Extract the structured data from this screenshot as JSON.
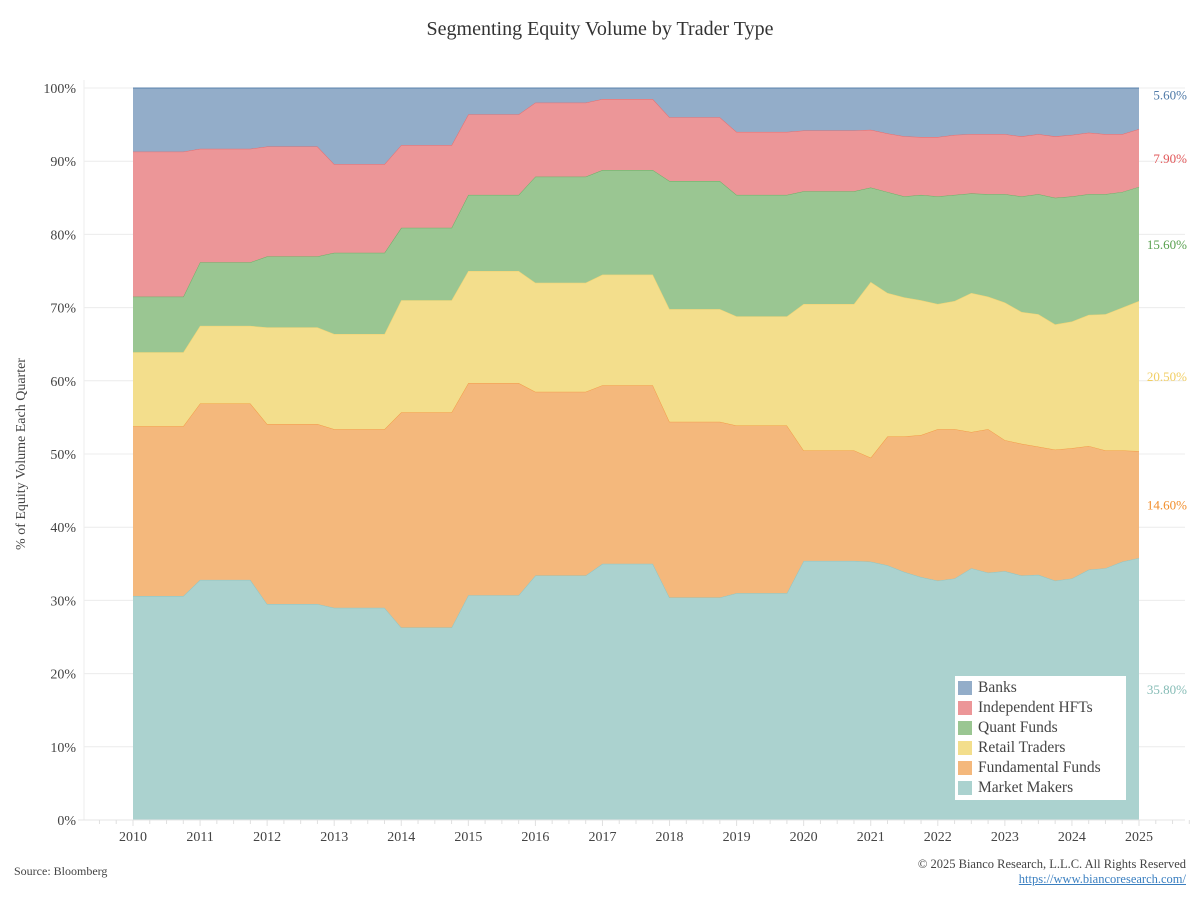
{
  "chart_data": {
    "type": "area",
    "stacked": true,
    "title": "Segmenting Equity Volume by Trader Type",
    "xlabel": "",
    "ylabel": "% of Equity Volume Each Quarter",
    "xlim": [
      2009.4,
      2025.7
    ],
    "ylim": [
      0,
      100
    ],
    "x_ticks": [
      "2010",
      "2011",
      "2012",
      "2013",
      "2014",
      "2015",
      "2016",
      "2017",
      "2018",
      "2019",
      "2020",
      "2021",
      "2022",
      "2023",
      "2024",
      "2025"
    ],
    "y_ticks": [
      "0%",
      "10%",
      "20%",
      "30%",
      "40%",
      "50%",
      "60%",
      "70%",
      "80%",
      "90%",
      "100%"
    ],
    "grid": true,
    "legend_position": "bottom-right",
    "x": [
      2010,
      2010.75,
      2011,
      2011.75,
      2012,
      2012.75,
      2013,
      2013.75,
      2014,
      2014.75,
      2015,
      2015.75,
      2016,
      2016.75,
      2017,
      2017.75,
      2018,
      2018.75,
      2019,
      2019.75,
      2020,
      2020.75,
      2021,
      2021.25,
      2021.5,
      2021.75,
      2022,
      2022.25,
      2022.5,
      2022.75,
      2023,
      2023.25,
      2023.5,
      2023.75,
      2024,
      2024.25,
      2024.5,
      2024.75,
      2025
    ],
    "series": [
      {
        "name": "Market Makers",
        "color": "#86bcb6",
        "fill": "#abd2cf",
        "end_label": "35.80%",
        "values": [
          30.6,
          30.6,
          32.8,
          32.8,
          29.5,
          29.5,
          29.0,
          29.0,
          26.3,
          26.3,
          30.7,
          30.7,
          33.4,
          33.4,
          35.0,
          35.0,
          30.4,
          30.4,
          31.0,
          31.0,
          35.4,
          35.4,
          35.3,
          34.8,
          33.9,
          33.2,
          32.7,
          33.0,
          34.4,
          33.8,
          34.0,
          33.4,
          33.5,
          32.7,
          33.0,
          34.2,
          34.4,
          35.3,
          35.8
        ]
      },
      {
        "name": "Fundamental Funds",
        "color": "#f28e2b",
        "fill": "#f4b87c",
        "end_label": "14.60%",
        "values": [
          23.2,
          23.2,
          24.1,
          24.1,
          24.6,
          24.6,
          24.4,
          24.4,
          29.4,
          29.4,
          29.0,
          29.0,
          25.1,
          25.1,
          24.4,
          24.4,
          24.0,
          24.0,
          22.9,
          22.9,
          15.1,
          15.1,
          14.2,
          17.6,
          18.5,
          19.4,
          20.7,
          20.4,
          18.6,
          19.6,
          17.9,
          18.0,
          17.5,
          17.9,
          17.8,
          16.9,
          16.1,
          15.2,
          14.6
        ]
      },
      {
        "name": "Retail Traders",
        "color": "#f1ce63",
        "fill": "#f3de8c",
        "end_label": "20.50%",
        "values": [
          10.1,
          10.1,
          10.6,
          10.6,
          13.2,
          13.2,
          13.0,
          13.0,
          15.3,
          15.3,
          15.3,
          15.3,
          14.9,
          14.9,
          15.1,
          15.1,
          15.4,
          15.4,
          14.9,
          14.9,
          20.0,
          20.0,
          24.0,
          19.6,
          19.0,
          18.4,
          17.1,
          17.5,
          19.0,
          18.1,
          18.8,
          18.0,
          18.1,
          17.1,
          17.3,
          17.9,
          18.6,
          19.5,
          20.5
        ]
      },
      {
        "name": "Quant Funds",
        "color": "#59a14f",
        "fill": "#9ac692",
        "end_label": "15.60%",
        "values": [
          7.6,
          7.6,
          8.7,
          8.7,
          9.7,
          9.7,
          11.1,
          11.1,
          9.9,
          9.9,
          10.4,
          10.4,
          14.5,
          14.5,
          14.3,
          14.3,
          17.5,
          17.5,
          16.6,
          16.6,
          15.4,
          15.4,
          12.9,
          13.8,
          13.8,
          14.4,
          14.7,
          14.5,
          13.6,
          14.0,
          14.8,
          15.8,
          16.4,
          17.3,
          17.1,
          16.5,
          16.4,
          15.8,
          15.6
        ]
      },
      {
        "name": "Independent HFTs",
        "color": "#e15759",
        "fill": "#ec9698",
        "end_label": "7.90%",
        "values": [
          19.8,
          19.8,
          15.5,
          15.5,
          15.0,
          15.0,
          12.1,
          12.1,
          11.3,
          11.3,
          11.0,
          11.0,
          10.1,
          10.1,
          9.7,
          9.7,
          8.7,
          8.7,
          8.6,
          8.6,
          8.3,
          8.3,
          7.9,
          8.0,
          8.2,
          7.9,
          8.1,
          8.2,
          8.1,
          8.2,
          8.2,
          8.2,
          8.2,
          8.4,
          8.4,
          8.4,
          8.2,
          7.9,
          7.9
        ]
      },
      {
        "name": "Banks",
        "color": "#4e79a7",
        "fill": "#93adc9",
        "end_label": "5.60%",
        "values": [
          8.7,
          8.7,
          8.3,
          8.3,
          8.0,
          8.0,
          10.4,
          10.4,
          7.8,
          7.8,
          3.6,
          3.6,
          2.0,
          2.0,
          1.5,
          1.5,
          4.0,
          4.0,
          6.0,
          6.0,
          5.8,
          5.8,
          5.7,
          6.2,
          6.6,
          6.7,
          6.7,
          6.4,
          6.3,
          6.3,
          6.3,
          6.6,
          6.3,
          6.6,
          6.4,
          6.1,
          6.3,
          6.3,
          5.6
        ]
      }
    ]
  },
  "legend": {
    "items": [
      {
        "label": "Banks",
        "color": "#93adc9"
      },
      {
        "label": "Independent HFTs",
        "color": "#ec9698"
      },
      {
        "label": "Quant Funds",
        "color": "#9ac692"
      },
      {
        "label": "Retail Traders",
        "color": "#f3de8c"
      },
      {
        "label": "Fundamental Funds",
        "color": "#f4b87c"
      },
      {
        "label": "Market Makers",
        "color": "#abd2cf"
      }
    ]
  },
  "footer": {
    "source": "Source: Bloomberg",
    "copyright": "© 2025 Bianco Research, L.L.C. All Rights Reserved",
    "url": "https://www.biancoresearch.com/"
  }
}
